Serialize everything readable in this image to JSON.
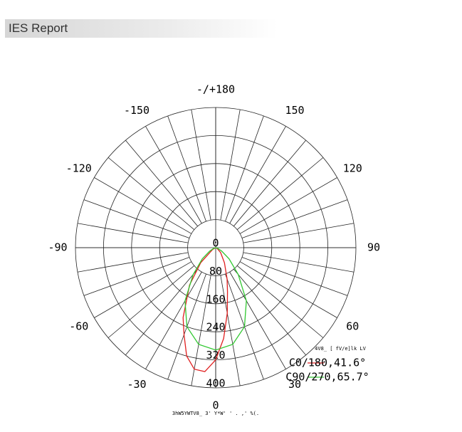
{
  "header": {
    "title": "IES Report"
  },
  "chart_data": {
    "type": "polar",
    "rlim": [
      0,
      400
    ],
    "rticks": [
      0,
      80,
      160,
      240,
      320,
      400
    ],
    "angle_ticks": [
      0,
      30,
      60,
      90,
      120,
      150,
      {
        "value": 180,
        "label": "-/+180"
      },
      -150,
      -120,
      -90,
      -60,
      -30
    ],
    "legend_title": "4V8_ [ fV/e]lk LV",
    "footnote": "3hW5YWTV8_ 3' Y*W' ' . ,' %(.",
    "series": [
      {
        "name": "C0/180,41.6°",
        "color": "#e02020",
        "angles": [
          -90,
          -60,
          -45,
          -35,
          -25,
          -20,
          -15,
          -10,
          -5,
          0,
          5,
          10,
          15,
          20,
          30,
          45,
          60,
          90
        ],
        "values": [
          0,
          10,
          60,
          130,
          220,
          264,
          320,
          352,
          355,
          320,
          260,
          190,
          130,
          95,
          50,
          20,
          5,
          0
        ]
      },
      {
        "name": "C90/270,65.7°",
        "color": "#30c830",
        "angles": [
          -90,
          -75,
          -60,
          -50,
          -40,
          -30,
          -20,
          -10,
          0,
          10,
          20,
          30,
          40,
          50,
          60,
          75,
          90
        ],
        "values": [
          0,
          5,
          20,
          50,
          100,
          175,
          240,
          280,
          292,
          280,
          240,
          175,
          100,
          50,
          20,
          5,
          0
        ]
      }
    ]
  }
}
